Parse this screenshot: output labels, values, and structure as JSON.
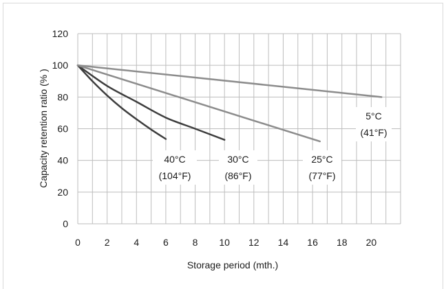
{
  "chart_data": {
    "type": "line",
    "title": "",
    "xlabel": "Storage period (mth.)",
    "ylabel": "Capacity retention ratio (%  )",
    "xlim": [
      0,
      22
    ],
    "ylim": [
      0,
      120
    ],
    "xticks": [
      "0",
      "2",
      "4",
      "6",
      "8",
      "10",
      "12",
      "14",
      "16",
      "18",
      "20"
    ],
    "yticks": [
      "0",
      "20",
      "40",
      "60",
      "80",
      "100",
      "120"
    ],
    "grid": true,
    "legend": "none",
    "series": [
      {
        "name": "40°C (104°F)",
        "color": "#3d3d3d",
        "x": [
          0,
          1,
          2,
          3,
          4,
          5,
          6
        ],
        "y": [
          100,
          90,
          81,
          73,
          66,
          59.5,
          53.5
        ]
      },
      {
        "name": "30°C (86°F)",
        "color": "#3d3d3d",
        "x": [
          0,
          2,
          4,
          6,
          8,
          10
        ],
        "y": [
          100,
          87,
          77,
          67,
          60,
          53
        ]
      },
      {
        "name": "25°C (77°F)",
        "color": "#8c8c8c",
        "x": [
          0,
          16.5
        ],
        "y": [
          100,
          52
        ]
      },
      {
        "name": "5°C (41°F)",
        "color": "#8c8c8c",
        "x": [
          0,
          20.7
        ],
        "y": [
          100,
          80
        ]
      }
    ],
    "annotations": [
      {
        "id": "a40",
        "line1": "40°C",
        "line2": "(104°F)"
      },
      {
        "id": "a30",
        "line1": "30°C",
        "line2": "(86°F)"
      },
      {
        "id": "a25",
        "line1": "25°C",
        "line2": "(77°F)"
      },
      {
        "id": "a5",
        "line1": "5°C",
        "line2": "(41°F)"
      }
    ]
  }
}
